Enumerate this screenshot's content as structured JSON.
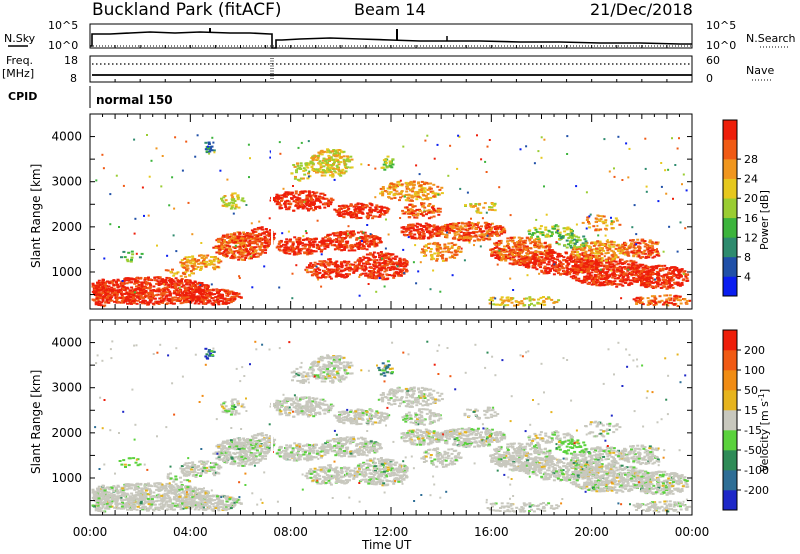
{
  "header": {
    "site": "Buckland Park (fitACF)",
    "beam": "Beam 14",
    "date": "21/Dec/2018"
  },
  "top_panel": {
    "nsky_label": "N.Sky",
    "nsearch_label": "N.Search",
    "log_top": "10^5",
    "log_bottom": "10^0",
    "freq_label": "Freq.",
    "freq_unit": "[MHz]",
    "freq_top": "18",
    "freq_bottom": "8",
    "nave_label": "Nave",
    "nave_top": "60",
    "nave_bottom": "0",
    "cpid_label": "CPID",
    "cpid_value": "normal 150"
  },
  "chart_data": [
    {
      "type": "heatmap",
      "title": "",
      "ylabel": "Slant Range [km]",
      "xlabel": "",
      "ylim": [
        180,
        4500
      ],
      "xlim": [
        "00:00",
        "24:00"
      ],
      "ytick_labels": [
        "1000",
        "2000",
        "3000",
        "4000"
      ],
      "colorbar": {
        "label": "Power [dB]",
        "ticks": [
          "4",
          "8",
          "12",
          "16",
          "20",
          "24",
          "28"
        ],
        "colors": [
          "#0a1ef0",
          "#2050a8",
          "#2e8b6e",
          "#3cb43c",
          "#9acd32",
          "#e6c81e",
          "#f0961e",
          "#f05a14",
          "#ee1e0a"
        ]
      }
    },
    {
      "type": "heatmap",
      "title": "",
      "ylabel": "Slant Range [km]",
      "xlabel": "Time UT",
      "ylim": [
        180,
        4500
      ],
      "xlim": [
        "00:00",
        "24:00"
      ],
      "ytick_labels": [
        "1000",
        "2000",
        "3000",
        "4000"
      ],
      "xtick_labels": [
        "00:00",
        "04:00",
        "08:00",
        "12:00",
        "16:00",
        "20:00",
        "00:00"
      ],
      "colorbar": {
        "label": "Velocity [m s^-1]",
        "ticks": [
          "200",
          "100",
          "50",
          "15",
          "-15",
          "-50",
          "-100",
          "-200"
        ],
        "colors": [
          "#1e28c8",
          "#2e6e96",
          "#2e8b57",
          "#5ad23c",
          "#c8c8be",
          "#e6b41e",
          "#f08c14",
          "#f05a14",
          "#ee1e0a"
        ]
      }
    }
  ]
}
